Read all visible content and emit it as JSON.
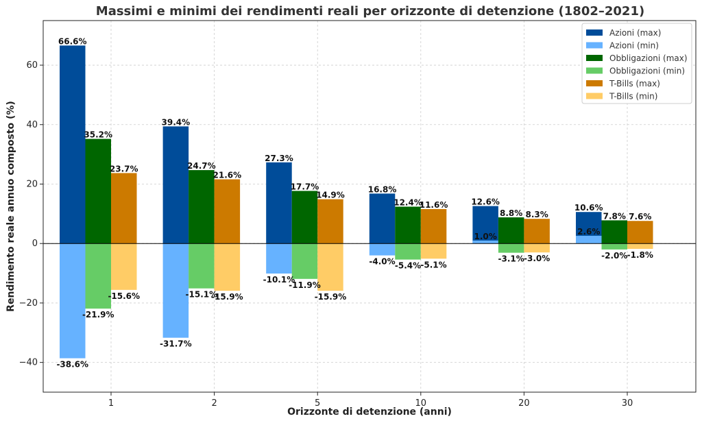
{
  "chart_data": {
    "type": "bar",
    "title": "Massimi e minimi dei rendimenti reali per orizzonte di detenzione (1802–2021)",
    "xlabel": "Orizzonte di detenzione (anni)",
    "ylabel": "Rendimento reale annuo composto (%)",
    "ylim": [
      -50,
      75
    ],
    "yticks": [
      -40,
      -20,
      0,
      20,
      40,
      60
    ],
    "grid": true,
    "legend_position": "top-right",
    "categories": [
      "1",
      "2",
      "5",
      "10",
      "20",
      "30"
    ],
    "value_suffix": "%",
    "series": [
      {
        "name": "Azioni (max)",
        "color": "#004c99",
        "values": [
          66.6,
          39.4,
          27.3,
          16.8,
          12.6,
          10.6
        ]
      },
      {
        "name": "Azioni (min)",
        "color": "#66b2ff",
        "values": [
          -38.6,
          -31.7,
          -10.1,
          -4.0,
          1.0,
          2.6
        ]
      },
      {
        "name": "Obbligazioni (max)",
        "color": "#006600",
        "values": [
          35.2,
          24.7,
          17.7,
          12.4,
          8.8,
          7.8
        ]
      },
      {
        "name": "Obbligazioni (min)",
        "color": "#66cc66",
        "values": [
          -21.9,
          -15.1,
          -11.9,
          -5.4,
          -3.1,
          -2.0
        ]
      },
      {
        "name": "T-Bills (max)",
        "color": "#cc7a00",
        "values": [
          23.7,
          21.6,
          14.9,
          11.6,
          8.3,
          7.6
        ]
      },
      {
        "name": "T-Bills (min)",
        "color": "#ffcc66",
        "values": [
          -15.6,
          -15.9,
          -15.9,
          -5.1,
          -3.0,
          -1.8
        ]
      }
    ]
  }
}
